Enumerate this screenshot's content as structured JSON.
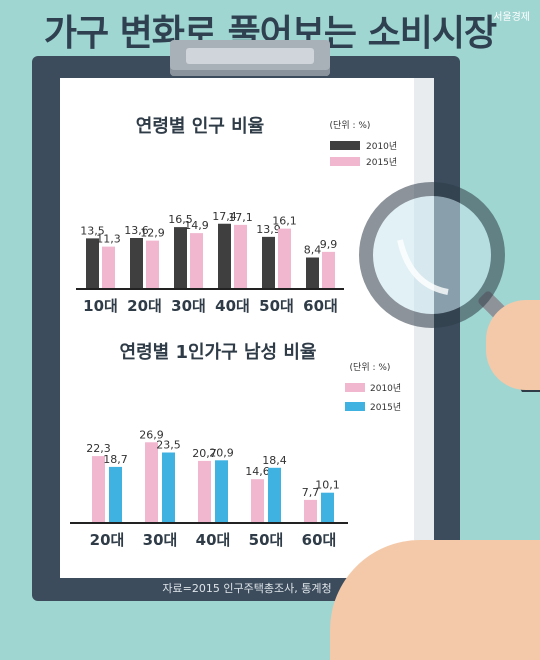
{
  "header": {
    "title": "가구 변화로 풀어보는 소비시장",
    "brand": "서울경제"
  },
  "source": "자료=2015 인구주택총조사, 통계청",
  "colors": {
    "dark": "#3f3f3f",
    "pink": "#f0b7cf",
    "blue": "#3fb2e2"
  },
  "chart_data": [
    {
      "type": "bar",
      "title": "연령별 인구 비율",
      "unit": "(단위 : %)",
      "categories": [
        "10대",
        "20대",
        "30대",
        "40대",
        "50대",
        "60대"
      ],
      "series": [
        {
          "name": "2010년",
          "values": [
            13.5,
            13.6,
            16.5,
            17.4,
            13.9,
            8.4
          ],
          "labels": [
            "13,5",
            "13,6",
            "16,5",
            "17,4",
            "13,9",
            "8,4"
          ]
        },
        {
          "name": "2015년",
          "values": [
            11.3,
            12.9,
            14.9,
            17.1,
            16.1,
            9.9
          ],
          "labels": [
            "11,3",
            "12,9",
            "14,9",
            "17,1",
            "16,1",
            "9,9"
          ]
        }
      ]
    },
    {
      "type": "bar",
      "title": "연령별 1인가구 남성 비율",
      "unit": "(단위 : %)",
      "categories": [
        "20대",
        "30대",
        "40대",
        "50대",
        "60대"
      ],
      "series": [
        {
          "name": "2010년",
          "values": [
            22.3,
            26.9,
            20.7,
            14.6,
            7.7
          ],
          "labels": [
            "22,3",
            "26,9",
            "20,7",
            "14,6",
            "7,7"
          ]
        },
        {
          "name": "2015년",
          "values": [
            18.7,
            23.5,
            20.9,
            18.4,
            10.1
          ],
          "labels": [
            "18,7",
            "23,5",
            "20,9",
            "18,4",
            "10,1"
          ]
        }
      ]
    }
  ]
}
